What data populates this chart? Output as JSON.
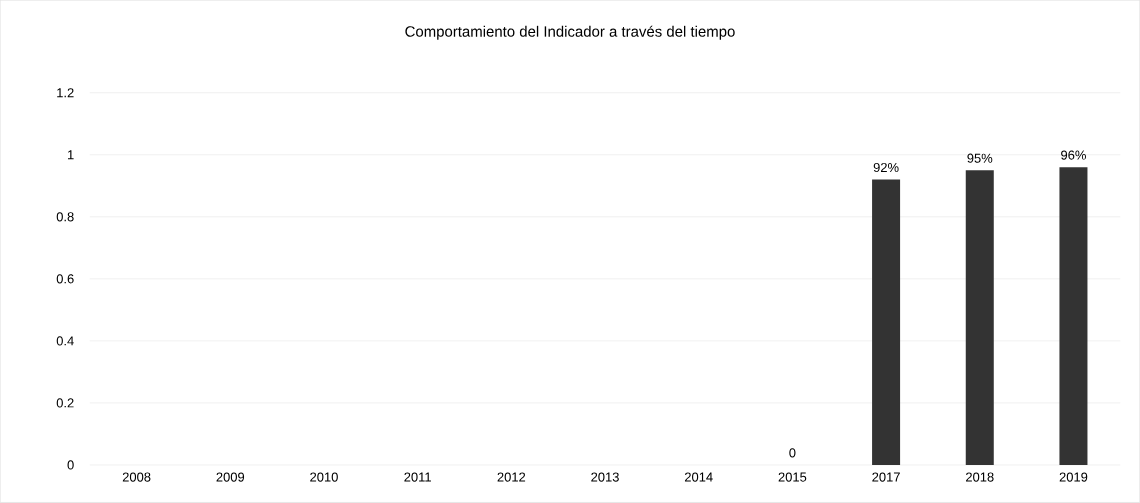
{
  "chart_data": {
    "type": "bar",
    "title": "Comportamiento del Indicador a través del tiempo",
    "categories": [
      "2008",
      "2009",
      "2010",
      "2011",
      "2012",
      "2013",
      "2014",
      "2015",
      "2017",
      "2018",
      "2019"
    ],
    "values": [
      null,
      null,
      null,
      null,
      null,
      null,
      null,
      0,
      0.92,
      0.95,
      0.96
    ],
    "value_labels": [
      null,
      null,
      null,
      null,
      null,
      null,
      null,
      "0",
      "92%",
      "95%",
      "96%"
    ],
    "color": "#333333",
    "ylim": [
      0,
      1.2
    ],
    "yticks": [
      0,
      0.2,
      0.4,
      0.6,
      0.8,
      1,
      1.2
    ],
    "grid": "y"
  }
}
